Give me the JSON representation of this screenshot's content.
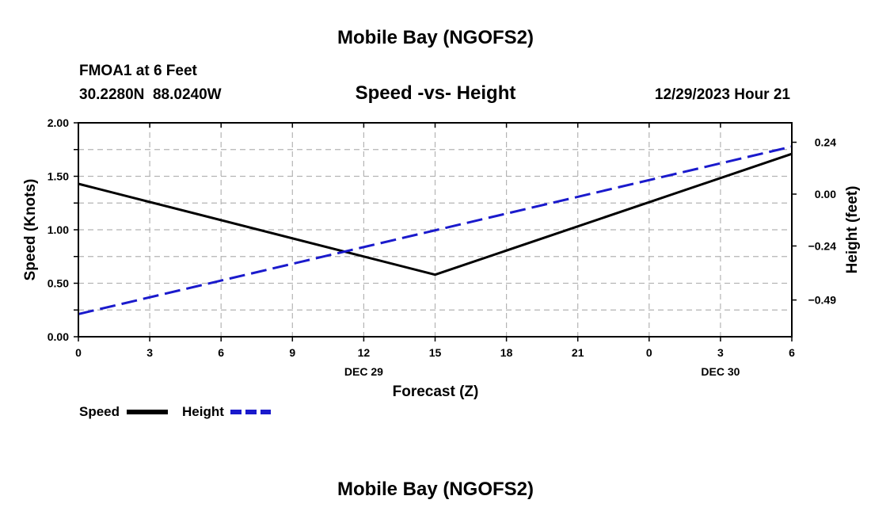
{
  "page": {
    "main_title": "Mobile Bay (NGOFS2)",
    "bottom_title": "Mobile Bay (NGOFS2)",
    "station_line": "FMOA1 at 6 Feet",
    "coords_line": "30.2280N  88.0240W",
    "date_line": "12/29/2023 Hour 21"
  },
  "chart_data": {
    "type": "line",
    "title": "Speed -vs- Height",
    "xlabel": "Forecast (Z)",
    "ylabel": "Speed (Knots)",
    "y2label": "Height (feet)",
    "x_tick_labels": [
      "0",
      "3",
      "6",
      "9",
      "12",
      "15",
      "18",
      "21",
      "0",
      "3",
      "6"
    ],
    "date_labels": [
      {
        "text": "DEC 29",
        "at_tick": 4
      },
      {
        "text": "DEC 30",
        "at_tick": 9
      }
    ],
    "xlim": [
      0,
      30
    ],
    "ylim": [
      0,
      2.0
    ],
    "y_ticks": [
      0,
      0.25,
      0.5,
      0.75,
      1.0,
      1.25,
      1.5,
      1.75,
      2.0
    ],
    "y_tick_labels": [
      "0.00",
      "0.50",
      "1.00",
      "1.50",
      "2.00"
    ],
    "y_tick_label_values": [
      0,
      0.5,
      1.0,
      1.5,
      2.0
    ],
    "y2lim": [
      -0.66,
      0.33
    ],
    "y2_ticks": [
      -0.49,
      -0.24,
      0.0,
      0.24
    ],
    "y2_tick_labels": [
      "−0.49",
      "−0.24",
      "0.00",
      "0.24"
    ],
    "grid": true,
    "legend_placement": "bottom-left",
    "series": [
      {
        "name": "Speed",
        "axis": "left",
        "color": "#000000",
        "style": "solid",
        "x": [
          0,
          15,
          30
        ],
        "y": [
          1.43,
          0.58,
          1.71
        ]
      },
      {
        "name": "Height",
        "axis": "right",
        "color": "#1a1acc",
        "style": "dashed",
        "x": [
          0,
          30
        ],
        "y": [
          -0.555,
          0.22
        ]
      }
    ]
  }
}
